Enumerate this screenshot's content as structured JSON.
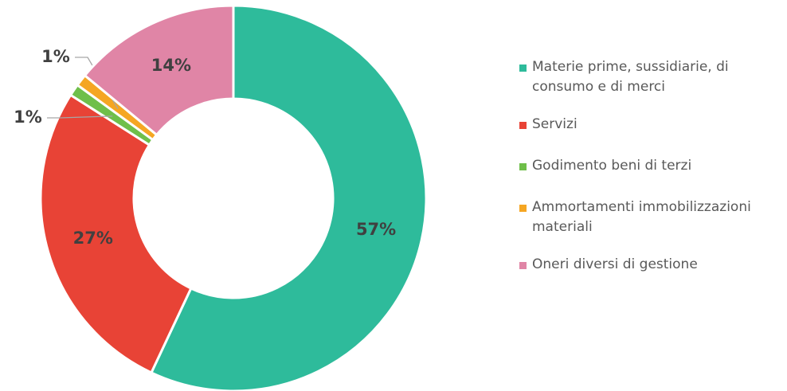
{
  "chart_data": {
    "type": "pie",
    "categories": [
      "Materie prime, sussidiarie, di consumo e di merci",
      "Servizi",
      "Godimento beni di terzi",
      "Ammortamenti immobilizzazioni materiali",
      "Oneri diversi di gestione"
    ],
    "values": [
      57,
      27,
      1,
      1,
      14
    ],
    "value_labels": [
      "57%",
      "27%",
      "1%",
      "1%",
      "14%"
    ],
    "colors": [
      "#2ebb9b",
      "#e84336",
      "#6fbf4a",
      "#f5a623",
      "#e085a6"
    ],
    "legend": "right"
  }
}
